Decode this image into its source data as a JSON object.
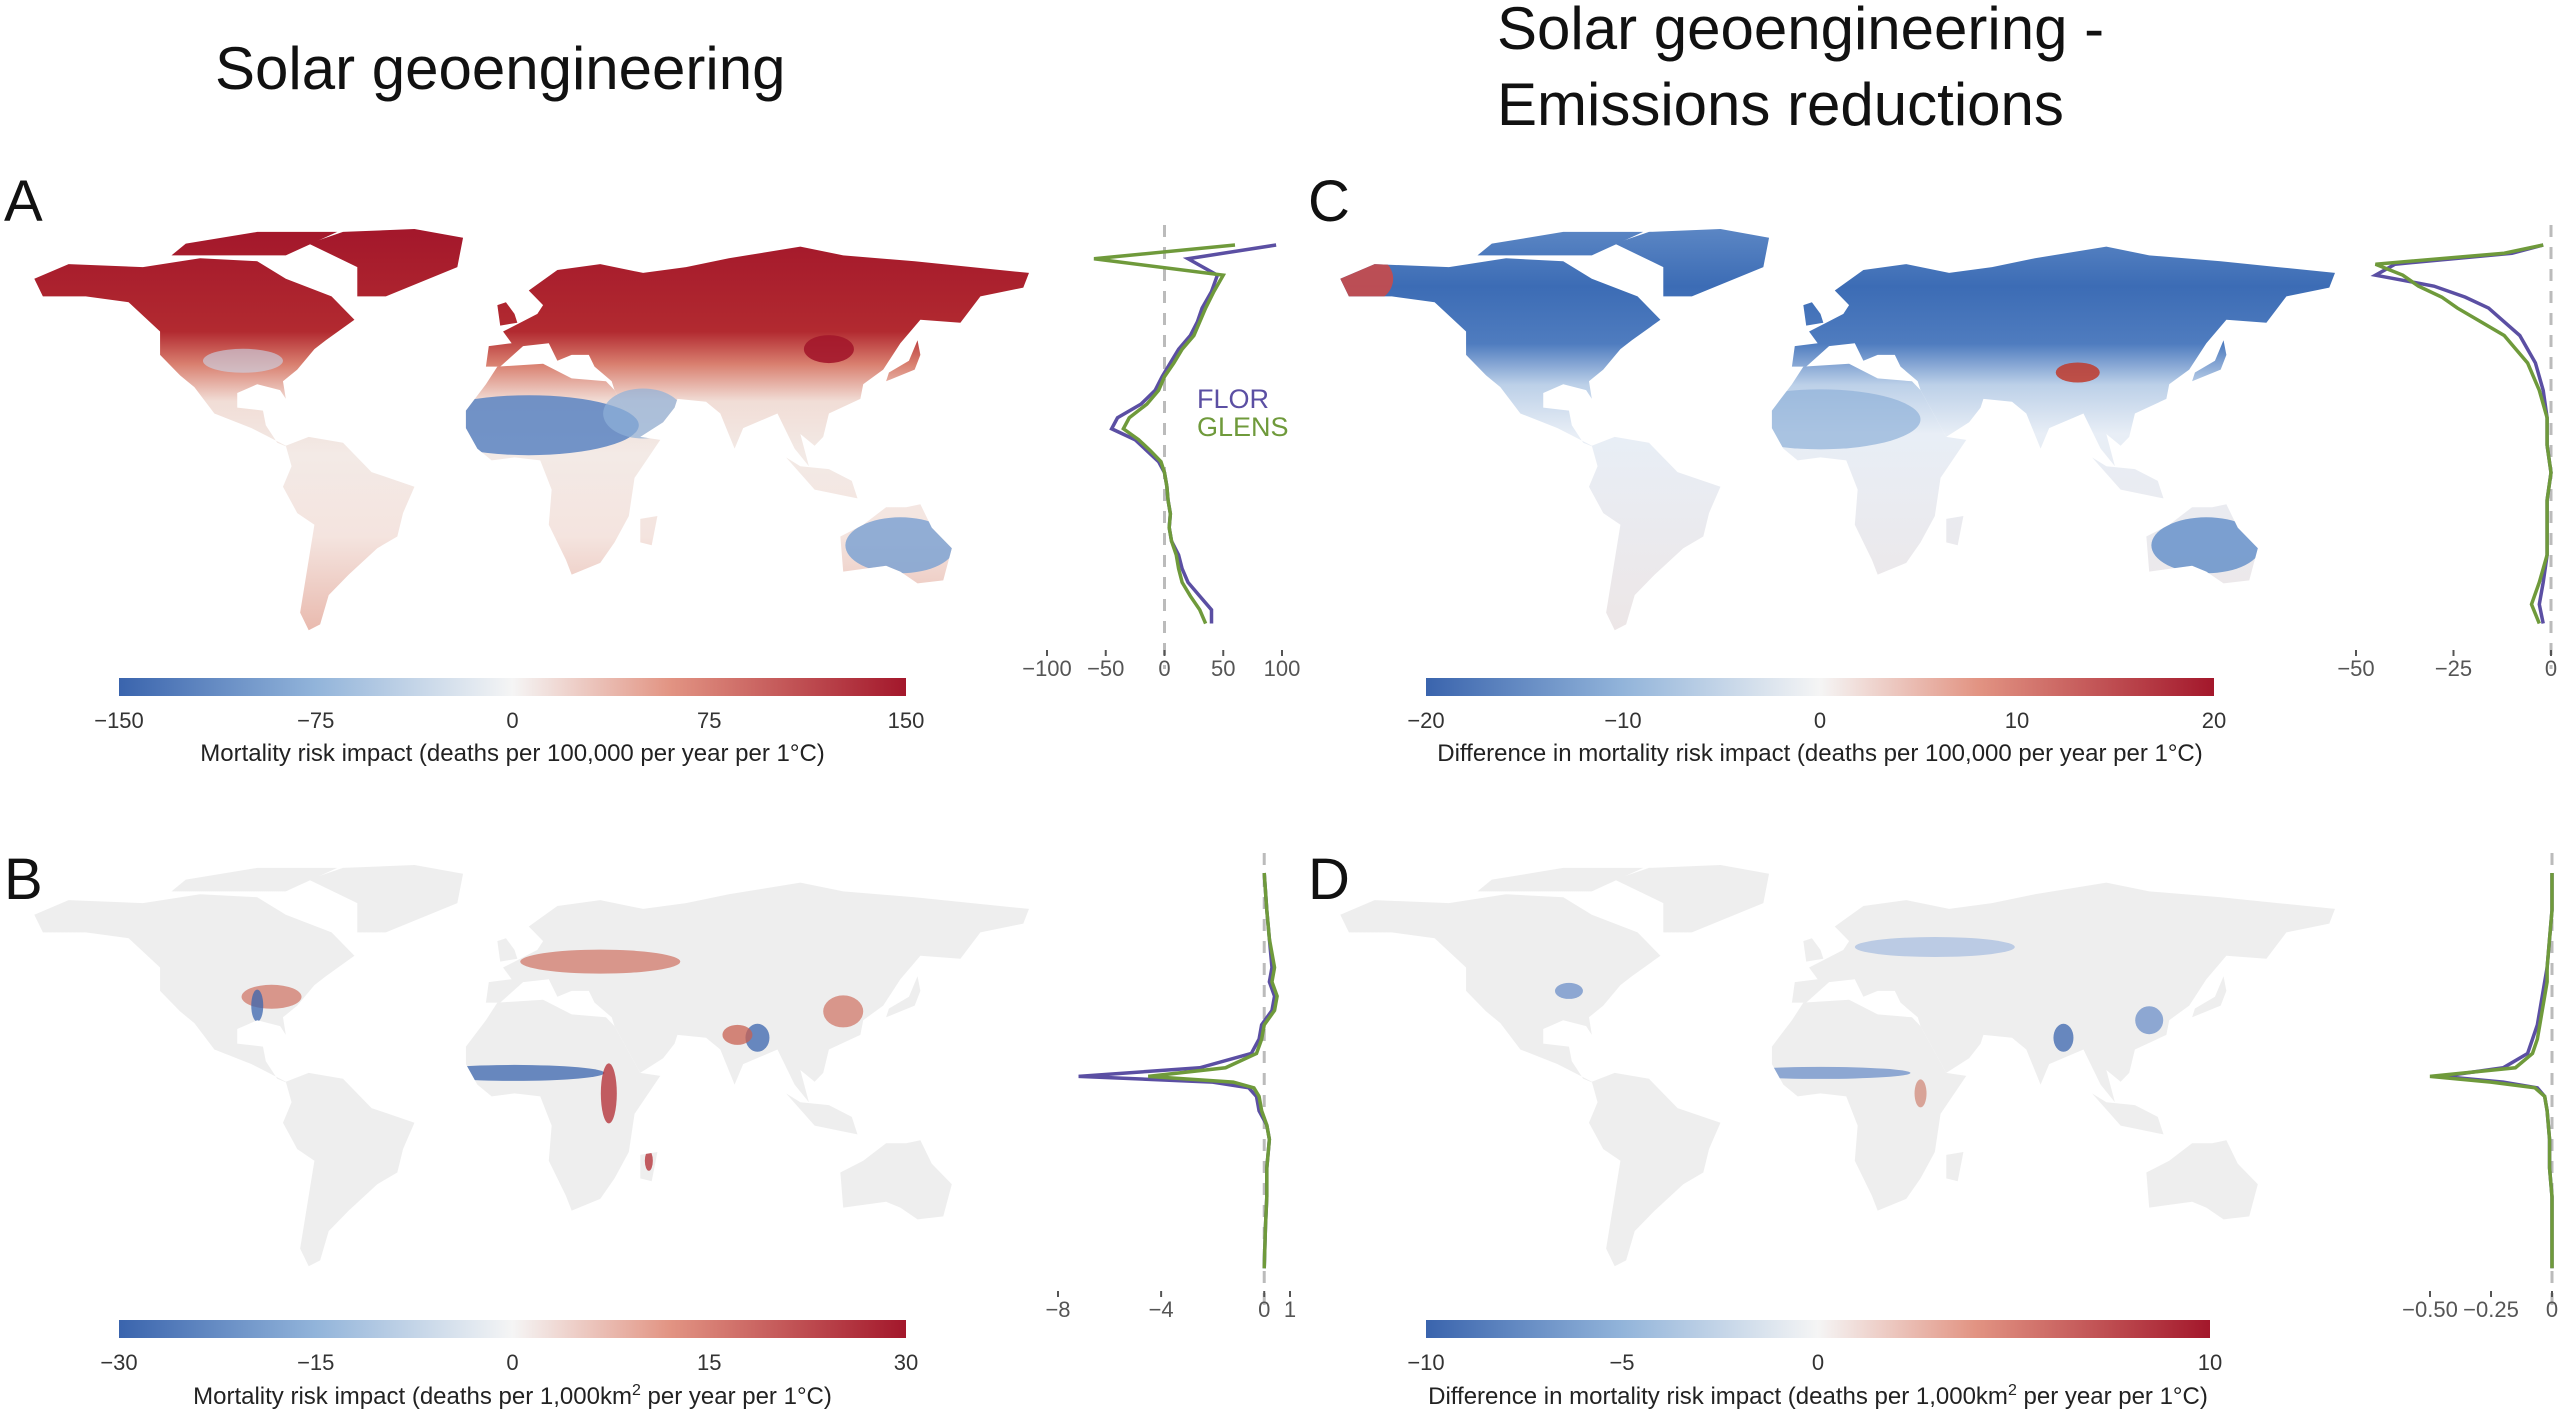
{
  "titles": {
    "left": "Solar geoengineering",
    "right_line1": "Solar geoengineering -",
    "right_line2": "Emissions reductions"
  },
  "panels": {
    "A": "A",
    "B": "B",
    "C": "C",
    "D": "D"
  },
  "legend": {
    "flor": "FLOR",
    "glens": "GLENS",
    "flor_color": "#5b4fa3",
    "glens_color": "#6f9a3b"
  },
  "colors": {
    "neg": "#3a64ad",
    "neg_mid": "#92b4da",
    "zero": "#f5f5f5",
    "pos_mid": "#e29483",
    "pos": "#a3172b",
    "land_neutral": "#eeeeee"
  },
  "colorbars": {
    "A": {
      "ticks": [
        "−150",
        "−75",
        "0",
        "75",
        "150"
      ],
      "label_pre": "Mortality risk impact (deaths per 100,000 per year per 1°C)",
      "sup": "",
      "label_post": ""
    },
    "C": {
      "ticks": [
        "−20",
        "−10",
        "0",
        "10",
        "20"
      ],
      "label_pre": "Difference in mortality risk impact (deaths per 100,000 per year per 1°C)",
      "sup": "",
      "label_post": ""
    },
    "B": {
      "ticks": [
        "−30",
        "−15",
        "0",
        "15",
        "30"
      ],
      "label_pre": "Mortality risk impact (deaths per 1,000km",
      "sup": "2",
      "label_post": " per year per 1°C)"
    },
    "D": {
      "ticks": [
        "−10",
        "−5",
        "0",
        "10"
      ],
      "label_pre": "Difference in mortality risk impact (deaths per 1,000km",
      "sup": "2",
      "label_post": " per year per 1°C)"
    }
  },
  "chart_data": [
    {
      "type": "line",
      "panel": "A",
      "xlim": [
        -110,
        110
      ],
      "ticks": [
        -100,
        -50,
        0,
        50,
        100
      ],
      "tick_labels": [
        "−100",
        "−50",
        "0",
        "50",
        "100"
      ],
      "series": [
        {
          "name": "FLOR",
          "lat": [
            83,
            78,
            72,
            66,
            60,
            55,
            50,
            45,
            40,
            35,
            30,
            25,
            20,
            16,
            12,
            8,
            4,
            0,
            -5,
            -10,
            -15,
            -20,
            -25,
            -30,
            -35,
            -40,
            -45,
            -50,
            -55
          ],
          "values": [
            95,
            20,
            45,
            40,
            32,
            28,
            22,
            12,
            5,
            -2,
            -8,
            -20,
            -40,
            -45,
            -25,
            -15,
            -5,
            0,
            2,
            3,
            5,
            4,
            6,
            12,
            15,
            20,
            30,
            40,
            40
          ]
        },
        {
          "name": "GLENS",
          "lat": [
            83,
            78,
            72,
            66,
            60,
            55,
            50,
            45,
            40,
            35,
            30,
            25,
            20,
            16,
            12,
            8,
            4,
            0,
            -5,
            -10,
            -15,
            -20,
            -25,
            -30,
            -35,
            -40,
            -45,
            -50,
            -55
          ],
          "values": [
            60,
            -60,
            50,
            42,
            35,
            30,
            25,
            15,
            8,
            0,
            -5,
            -15,
            -30,
            -35,
            -22,
            -12,
            -3,
            0,
            2,
            3,
            5,
            4,
            6,
            10,
            12,
            15,
            22,
            30,
            35
          ]
        }
      ]
    },
    {
      "type": "line",
      "panel": "B",
      "xlim": [
        -8.2,
        1.2
      ],
      "ticks": [
        -8,
        -4,
        0,
        1
      ],
      "tick_labels": [
        "−8",
        "−4",
        "0",
        "1"
      ],
      "series": [
        {
          "name": "FLOR",
          "lat": [
            83,
            70,
            60,
            50,
            45,
            40,
            35,
            30,
            25,
            20,
            15,
            12,
            10,
            8,
            5,
            0,
            -5,
            -10,
            -20,
            -30,
            -40,
            -55
          ],
          "values": [
            0,
            0.1,
            0.2,
            0.3,
            0.2,
            0.4,
            0.3,
            -0.1,
            -0.2,
            -0.5,
            -2.5,
            -7.2,
            -2.0,
            -0.6,
            -0.3,
            -0.2,
            0.1,
            0.2,
            0.1,
            0.1,
            0.05,
            0
          ]
        },
        {
          "name": "GLENS",
          "lat": [
            83,
            70,
            60,
            50,
            45,
            40,
            35,
            30,
            25,
            20,
            15,
            12,
            10,
            8,
            5,
            0,
            -5,
            -10,
            -20,
            -30,
            -40,
            -55
          ],
          "values": [
            0,
            0.1,
            0.2,
            0.4,
            0.3,
            0.5,
            0.4,
            0,
            -0.1,
            -0.3,
            -1.5,
            -4.5,
            -1.2,
            -0.4,
            -0.2,
            -0.1,
            0.1,
            0.2,
            0.1,
            0.1,
            0.05,
            0
          ]
        }
      ]
    },
    {
      "type": "line",
      "panel": "C",
      "xlim": [
        -52,
        2
      ],
      "ticks": [
        -50,
        -25,
        0
      ],
      "tick_labels": [
        "−50",
        "−25",
        "0"
      ],
      "series": [
        {
          "name": "FLOR",
          "lat": [
            83,
            80,
            76,
            72,
            68,
            64,
            60,
            55,
            50,
            45,
            40,
            30,
            20,
            10,
            0,
            -10,
            -20,
            -30,
            -40,
            -48,
            -55
          ],
          "values": [
            -2,
            -10,
            -40,
            -45,
            -30,
            -22,
            -16,
            -12,
            -8,
            -6,
            -4,
            -2,
            -1,
            -1,
            0,
            -1,
            -1,
            -1,
            -2,
            -3,
            -2
          ]
        },
        {
          "name": "GLENS",
          "lat": [
            83,
            80,
            76,
            72,
            68,
            64,
            60,
            55,
            50,
            45,
            40,
            30,
            20,
            10,
            0,
            -10,
            -20,
            -30,
            -40,
            -48,
            -55
          ],
          "values": [
            -2,
            -12,
            -45,
            -38,
            -34,
            -28,
            -24,
            -18,
            -12,
            -9,
            -6,
            -3,
            -1,
            -1,
            0,
            -1,
            -1,
            -1,
            -3,
            -5,
            -3
          ]
        }
      ]
    },
    {
      "type": "line",
      "panel": "D",
      "xlim": [
        -0.55,
        0.02
      ],
      "ticks": [
        -0.5,
        -0.25,
        0
      ],
      "tick_labels": [
        "−0.50",
        "−0.25",
        "0"
      ],
      "series": [
        {
          "name": "FLOR",
          "lat": [
            83,
            70,
            60,
            50,
            45,
            40,
            35,
            30,
            25,
            20,
            15,
            12,
            10,
            8,
            5,
            0,
            -10,
            -20,
            -30,
            -40,
            -55
          ],
          "values": [
            0,
            0,
            -0.01,
            -0.02,
            -0.03,
            -0.04,
            -0.05,
            -0.06,
            -0.08,
            -0.1,
            -0.2,
            -0.45,
            -0.2,
            -0.06,
            -0.03,
            -0.02,
            -0.01,
            -0.01,
            0,
            0,
            0
          ]
        },
        {
          "name": "GLENS",
          "lat": [
            83,
            70,
            60,
            50,
            45,
            40,
            35,
            30,
            25,
            20,
            15,
            12,
            10,
            8,
            5,
            0,
            -10,
            -20,
            -30,
            -40,
            -55
          ],
          "values": [
            0,
            0,
            -0.01,
            -0.02,
            -0.02,
            -0.03,
            -0.04,
            -0.05,
            -0.06,
            -0.08,
            -0.15,
            -0.5,
            -0.25,
            -0.07,
            -0.03,
            -0.02,
            -0.01,
            -0.01,
            0,
            0,
            0
          ]
        }
      ]
    }
  ]
}
